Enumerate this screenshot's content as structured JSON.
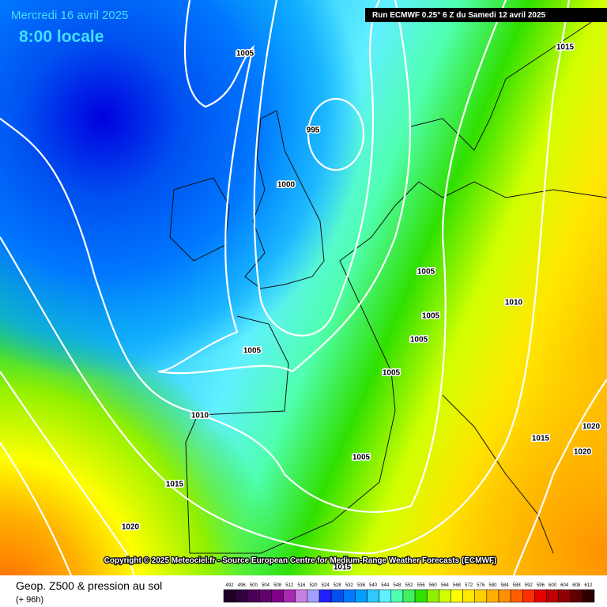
{
  "header": {
    "date": "Mercredi 16 avril 2025",
    "time": "8:00 locale",
    "run": "Run ECMWF 0.25° 6 Z du Samedi 12 avril 2025"
  },
  "isobar_labels": [
    1005,
    995,
    1000,
    1005,
    1010,
    1005,
    1005,
    1005,
    1005,
    1010,
    1020,
    1015,
    1020,
    1005,
    1015,
    1020,
    1015,
    1015
  ],
  "copyright": "Copyright © 2025 Meteociel.fr - Source European Centre for Medium-Range Weather Forecasts (ECMWF)",
  "footer": {
    "title": "Geop. Z500 & pression au sol",
    "lead": "(+ 96h)"
  },
  "legend": {
    "values": [
      492,
      496,
      500,
      504,
      508,
      512,
      516,
      520,
      524,
      528,
      532,
      536,
      540,
      544,
      548,
      552,
      556,
      560,
      564,
      568,
      572,
      576,
      580,
      584,
      588,
      592,
      596,
      600,
      604,
      608,
      612
    ],
    "colors": [
      "#1e0026",
      "#32003e",
      "#4a0056",
      "#62006e",
      "#800088",
      "#a828b0",
      "#c880e0",
      "#a0a0ff",
      "#2020ff",
      "#0050f0",
      "#0078ff",
      "#00a0ff",
      "#30c8ff",
      "#60f0ff",
      "#50ffb0",
      "#40f060",
      "#30e000",
      "#90f000",
      "#d0ff00",
      "#ffff00",
      "#ffe800",
      "#ffd000",
      "#ffb000",
      "#ff9000",
      "#ff6000",
      "#ff3000",
      "#e80000",
      "#c00000",
      "#900000",
      "#600000",
      "#300000"
    ]
  }
}
